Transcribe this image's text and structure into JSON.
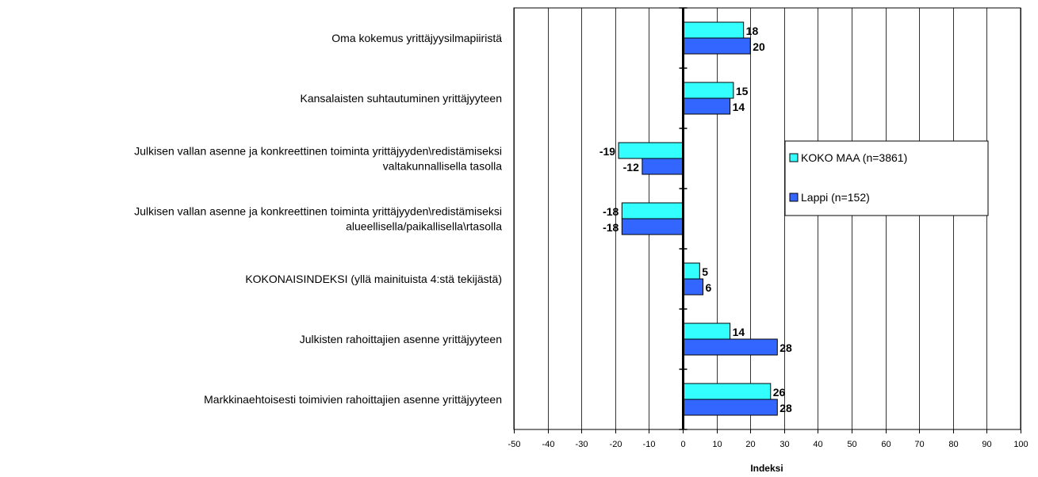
{
  "chart_data": {
    "type": "bar",
    "orientation": "horizontal",
    "categories": [
      [
        "Oma kokemus yrittäjyysilmapiiristä"
      ],
      [
        "Kansalaisten suhtautuminen yrittäjyyteen"
      ],
      [
        "Julkisen vallan asenne ja konkreettinen toiminta yrittäjyyden\\redistämiseksi",
        "valtakunnallisella tasolla"
      ],
      [
        "Julkisen vallan asenne ja konkreettinen toiminta yrittäjyyden\\redistämiseksi",
        "alueellisella/paikallisella\\rtasolla"
      ],
      [
        "KOKONAISINDEKSI (yllä mainituista 4:stä tekijästä)"
      ],
      [
        "Julkisten rahoittajien asenne yrittäjyyteen"
      ],
      [
        "Markkinaehtoisesti toimivien rahoittajien asenne yrittäjyyteen"
      ]
    ],
    "series": [
      {
        "name": "KOKO MAA (n=3861)",
        "color": "#33ffff",
        "values": [
          18,
          15,
          -19,
          -18,
          5,
          14,
          26
        ]
      },
      {
        "name": "Lappi (n=152)",
        "color": "#3366ff",
        "values": [
          20,
          14,
          -12,
          -18,
          6,
          28,
          28
        ]
      }
    ],
    "xlabel": "Indeksi",
    "xlim": [
      -50,
      100
    ],
    "ticks": [
      -50,
      -40,
      -30,
      -20,
      -10,
      0,
      10,
      20,
      30,
      40,
      50,
      60,
      70,
      80,
      90,
      100
    ],
    "grid": true,
    "legend_position": "right"
  }
}
